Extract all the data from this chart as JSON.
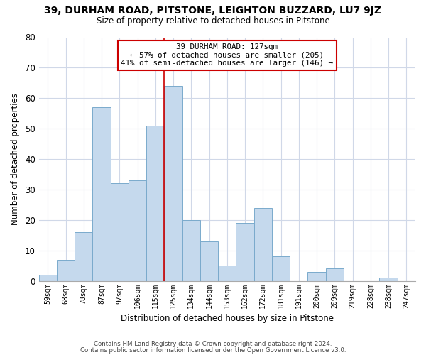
{
  "title": "39, DURHAM ROAD, PITSTONE, LEIGHTON BUZZARD, LU7 9JZ",
  "subtitle": "Size of property relative to detached houses in Pitstone",
  "xlabel": "Distribution of detached houses by size in Pitstone",
  "ylabel": "Number of detached properties",
  "bar_color": "#c5d9ed",
  "bar_edge_color": "#7aaacc",
  "categories": [
    "59sqm",
    "68sqm",
    "78sqm",
    "87sqm",
    "97sqm",
    "106sqm",
    "115sqm",
    "125sqm",
    "134sqm",
    "144sqm",
    "153sqm",
    "162sqm",
    "172sqm",
    "181sqm",
    "191sqm",
    "200sqm",
    "209sqm",
    "219sqm",
    "228sqm",
    "238sqm",
    "247sqm"
  ],
  "values": [
    2,
    7,
    16,
    57,
    32,
    33,
    51,
    64,
    20,
    13,
    5,
    19,
    24,
    8,
    0,
    3,
    4,
    0,
    0,
    1,
    0
  ],
  "ylim": [
    0,
    80
  ],
  "yticks": [
    0,
    10,
    20,
    30,
    40,
    50,
    60,
    70,
    80
  ],
  "vline_x": 6.5,
  "annotation_title": "39 DURHAM ROAD: 127sqm",
  "annotation_line1": "← 57% of detached houses are smaller (205)",
  "annotation_line2": "41% of semi-detached houses are larger (146) →",
  "vline_color": "#cc0000",
  "annotation_box_color": "#ffffff",
  "annotation_box_edge": "#cc0000",
  "footer1": "Contains HM Land Registry data © Crown copyright and database right 2024.",
  "footer2": "Contains public sector information licensed under the Open Government Licence v3.0.",
  "bg_color": "#ffffff",
  "grid_color": "#d0d8e8"
}
